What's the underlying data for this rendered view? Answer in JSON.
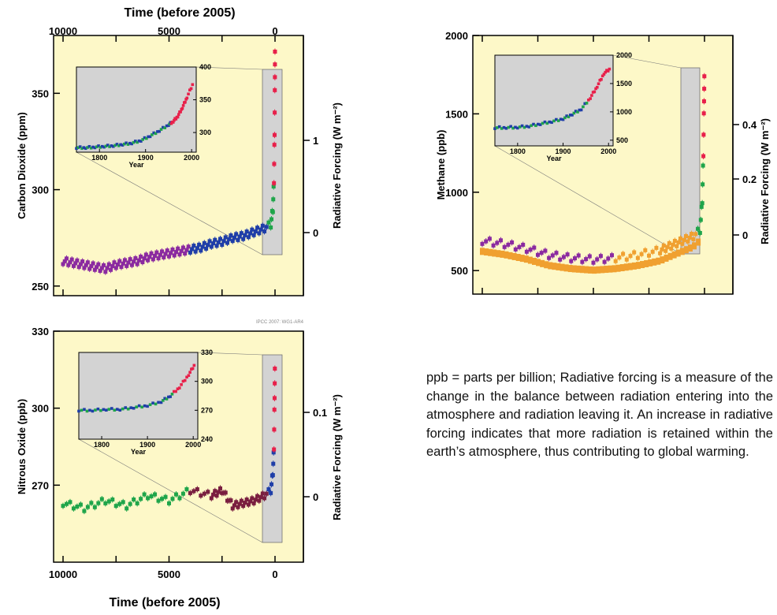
{
  "colors": {
    "panel_bg": "#fdf8c8",
    "inset_bg": "#d3d3d3",
    "law_dome_red": "#e8204a",
    "blue": "#1f3ea8",
    "green": "#1fa54a",
    "purple": "#8b2aa0",
    "orange": "#f0a030",
    "maroon": "#7a1f40"
  },
  "top_axis_title": "Time (before 2005)",
  "bottom_axis_title": "Time (before 2005)",
  "watermark": "IPCC 2007: WG1-AR4",
  "caption": "ppb = parts per billion; Radiative forcing is a measure of the change in the balance between radiation entering into the atmosphere and radiation leaving it. An increase in radiative forcing indicates that more radiation is retained within the earth’s atmosphere, thus contributing to global warming.",
  "chart_data": [
    {
      "type": "scatter",
      "panel": "co2",
      "ylabel": "Carbon Dioxide (ppm)",
      "y2label": "Radiative Forcing (W m⁻²)",
      "xlim": [
        10000,
        0
      ],
      "ylim": [
        245,
        380
      ],
      "x_ticks": [
        "10000",
        "5000",
        "0"
      ],
      "y_ticks": [
        "250",
        "300",
        "350"
      ],
      "y2_ticks": [
        "0",
        "1"
      ],
      "series": [
        {
          "x": [
            10000,
            9500,
            9000,
            8500,
            8000,
            7500,
            7000,
            6500,
            6000,
            5500,
            5000,
            4500,
            4000,
            3500,
            3000,
            2500,
            2000,
            1500,
            1000,
            500,
            200,
            100,
            50,
            20,
            5,
            0
          ],
          "y": [
            263,
            262,
            261,
            260,
            259,
            261,
            262,
            263,
            265,
            266,
            267,
            268,
            269,
            270,
            272,
            273,
            275,
            276,
            278,
            280,
            282,
            290,
            305,
            330,
            360,
            375
          ]
        }
      ],
      "inset": {
        "xlim": [
          1750,
          2010
        ],
        "ylim": [
          270,
          400
        ],
        "x_ticks": [
          "1800",
          "1900",
          "2000"
        ],
        "y_ticks": [
          "300",
          "350",
          "400"
        ],
        "xlabel": "Year",
        "series": [
          {
            "x": [
              1750,
              1770,
              1790,
              1810,
              1830,
              1850,
              1870,
              1890,
              1910,
              1930,
              1950,
              1960,
              1970,
              1980,
              1990,
              2005
            ],
            "y": [
              277,
              277,
              278,
              279,
              280,
              282,
              284,
              288,
              295,
              303,
              312,
              317,
              325,
              338,
              354,
              378
            ]
          }
        ]
      }
    },
    {
      "type": "scatter",
      "panel": "methane",
      "ylabel": "Methane (ppb)",
      "y2label": "Radiative Forcing (W m⁻²)",
      "xlim": [
        10000,
        0
      ],
      "ylim": [
        350,
        2000
      ],
      "y_ticks": [
        "500",
        "1000",
        "1500",
        "2000"
      ],
      "y2_ticks": [
        "0",
        "0.2",
        "0.4"
      ],
      "series": [
        {
          "x": [
            10000,
            9000,
            8000,
            7000,
            6000,
            5000,
            4000,
            3000,
            2000,
            1500,
            1000,
            500,
            200,
            100,
            50,
            20,
            0
          ],
          "y": [
            690,
            670,
            640,
            600,
            580,
            570,
            580,
            600,
            630,
            660,
            690,
            720,
            760,
            950,
            1250,
            1600,
            1780
          ]
        }
      ],
      "inset": {
        "xlim": [
          1750,
          2010
        ],
        "ylim": [
          400,
          2000
        ],
        "x_ticks": [
          "1800",
          "1900",
          "2000"
        ],
        "y_ticks": [
          "500",
          "1000",
          "1500",
          "2000"
        ],
        "xlabel": "Year",
        "series": [
          {
            "x": [
              1750,
              1775,
              1800,
              1825,
              1850,
              1875,
              1900,
              1920,
              1940,
              1960,
              1975,
              1990,
              2005
            ],
            "y": [
              720,
              725,
              730,
              750,
              790,
              830,
              880,
              960,
              1050,
              1250,
              1450,
              1680,
              1774
            ]
          }
        ]
      }
    },
    {
      "type": "scatter",
      "panel": "n2o",
      "ylabel": "Nitrous Oxide (ppb)",
      "y2label": "Radiative Forcing (W m⁻²)",
      "xlim": [
        10000,
        0
      ],
      "ylim": [
        240,
        330
      ],
      "x_ticks": [
        "10000",
        "5000",
        "0"
      ],
      "y_ticks": [
        "270",
        "300",
        "330"
      ],
      "y2_ticks": [
        "0",
        "0.1"
      ],
      "series": [
        {
          "x": [
            10000,
            9000,
            8000,
            7000,
            6000,
            5000,
            4000,
            3000,
            2500,
            2000,
            1500,
            1000,
            500,
            200,
            100,
            50,
            20,
            0
          ],
          "y": [
            263,
            261,
            264,
            262,
            266,
            264,
            268,
            266,
            268,
            262,
            263,
            264,
            266,
            268,
            275,
            285,
            305,
            319
          ]
        }
      ],
      "inset": {
        "xlim": [
          1750,
          2010
        ],
        "ylim": [
          240,
          330
        ],
        "x_ticks": [
          "1800",
          "1900",
          "2000"
        ],
        "y_ticks": [
          "240",
          "270",
          "300",
          "330"
        ],
        "xlabel": "Year",
        "series": [
          {
            "x": [
              1750,
              1780,
              1810,
              1840,
              1870,
              1900,
              1930,
              1950,
              1970,
              1990,
              2005
            ],
            "y": [
              270,
              270,
              271,
              271,
              273,
              275,
              279,
              285,
              294,
              307,
              319
            ]
          }
        ]
      }
    }
  ]
}
